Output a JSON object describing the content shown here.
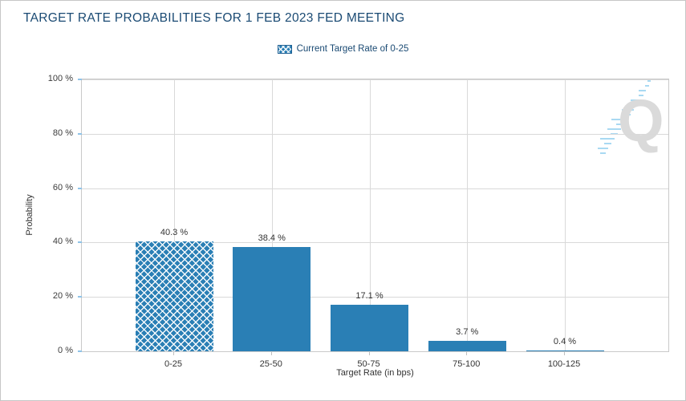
{
  "chart_data": {
    "type": "bar",
    "title": "TARGET RATE PROBABILITIES FOR 1 FEB 2023 FED MEETING",
    "legend": {
      "position": "top-center",
      "entries": [
        {
          "label": "Current Target Rate of 0-25",
          "swatch": "crosshatch-blue"
        }
      ]
    },
    "categories": [
      "0-25",
      "25-50",
      "50-75",
      "75-100",
      "100-125"
    ],
    "values": [
      40.3,
      38.4,
      17.1,
      3.7,
      0.4
    ],
    "value_labels": [
      "40.3 %",
      "38.4 %",
      "17.1 %",
      "3.7 %",
      "0.4 %"
    ],
    "hatched_category_index": 0,
    "xlabel": "Target Rate (in bps)",
    "ylabel": "Probability",
    "ylim": [
      0,
      100
    ],
    "yticks": [
      0,
      20,
      40,
      60,
      80,
      100
    ],
    "ytick_labels": [
      "0 %",
      "20 %",
      "40 %",
      "60 %",
      "80 %",
      "100 %"
    ],
    "grid": true,
    "colors": {
      "bar_fill": "#2a7fb5",
      "title_text": "#1a4a73",
      "grid": "#d9d9d9",
      "plot_border": "#c9c9c9",
      "ytick": "#8fc3e8",
      "label_text": "#333333",
      "watermark_letter": "#dadada",
      "watermark_dashes": "#a9d9f2"
    }
  },
  "watermark": {
    "letter": "Q"
  }
}
